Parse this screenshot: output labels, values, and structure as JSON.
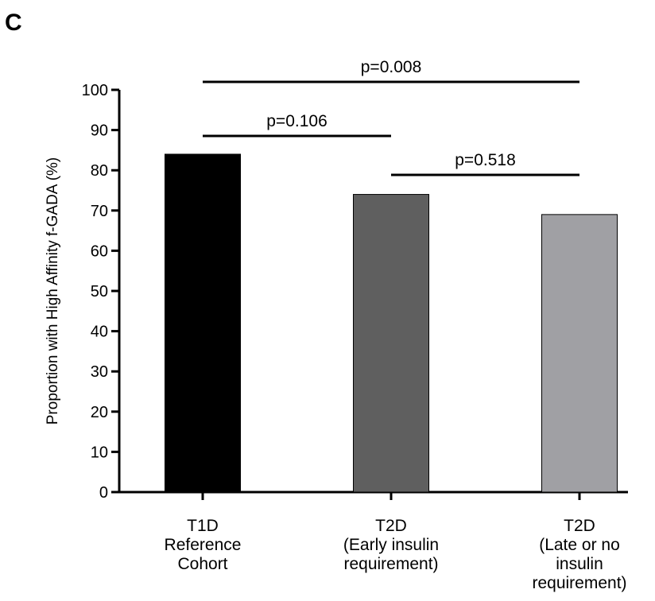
{
  "panel_label": "C",
  "chart_data": {
    "type": "bar",
    "ylabel": "Proportion with High Affinity f-GADA (%)",
    "xlabel": "",
    "ylim": [
      0,
      100
    ],
    "yticks": [
      0,
      10,
      20,
      30,
      40,
      50,
      60,
      70,
      80,
      90,
      100
    ],
    "grid": false,
    "categories": [
      [
        "T1D",
        "Reference",
        "Cohort"
      ],
      [
        "T2D",
        "(Early insulin",
        "requirement)"
      ],
      [
        "T2D",
        "(Late or no",
        "insulin",
        "requirement)"
      ]
    ],
    "values": [
      84,
      74,
      69
    ],
    "bar_colors": [
      "#000000",
      "#5f5f5f",
      "#a0a0a4"
    ],
    "comparisons": [
      {
        "from": 0,
        "to": 2,
        "label": "p=0.008"
      },
      {
        "from": 0,
        "to": 1,
        "label": "p=0.106"
      },
      {
        "from": 1,
        "to": 2,
        "label": "p=0.518"
      }
    ]
  }
}
